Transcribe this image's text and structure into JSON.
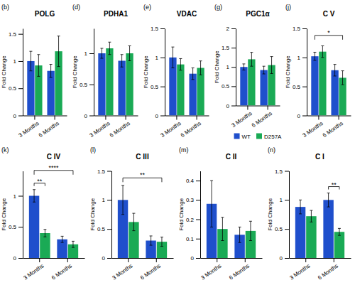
{
  "chart_data": [
    {
      "type": "bar",
      "title": "POLG",
      "ylabel": "Fold Change",
      "categories": [
        "3 Months",
        "6 Months"
      ],
      "series": [
        {
          "color": "#1f4fcc",
          "values": [
            1.0,
            0.82
          ],
          "errors": [
            0.18,
            0.12
          ]
        },
        {
          "color": "#1aaa55",
          "values": [
            0.92,
            1.18
          ],
          "errors": [
            0.2,
            0.28
          ]
        }
      ],
      "ylim": [
        0,
        1.6
      ],
      "yticks": [
        0,
        0.5,
        1,
        1.5
      ],
      "annotations": [
        {
          "text": "(b)"
        }
      ]
    },
    {
      "type": "bar",
      "title": "PDHA1",
      "ylabel": "Fold Change",
      "categories": [
        "3 Months",
        "6 Months"
      ],
      "series": [
        {
          "color": "#1f4fcc",
          "values": [
            1.0,
            0.88
          ],
          "errors": [
            0.08,
            0.1
          ]
        },
        {
          "color": "#1aaa55",
          "values": [
            1.08,
            1.0
          ],
          "errors": [
            0.1,
            0.12
          ]
        }
      ],
      "ylim": [
        0,
        1.4
      ],
      "yticks": [
        0,
        0.5,
        1
      ],
      "annotations": [
        {
          "text": "(d)"
        }
      ]
    },
    {
      "type": "bar",
      "title": "VDAC",
      "ylabel": "Fold Change",
      "categories": [
        "3 Months",
        "6 Months"
      ],
      "series": [
        {
          "color": "#1f4fcc",
          "values": [
            1.0,
            0.72
          ],
          "errors": [
            0.18,
            0.1
          ]
        },
        {
          "color": "#1aaa55",
          "values": [
            0.88,
            0.82
          ],
          "errors": [
            0.1,
            0.12
          ]
        }
      ],
      "ylim": [
        0,
        1.5
      ],
      "yticks": [
        0,
        0.5,
        1,
        1.5
      ],
      "annotations": [
        {
          "text": "(e)"
        }
      ]
    },
    {
      "type": "bar",
      "title": "PGC1α",
      "ylabel": "Fold Change",
      "categories": [
        "3 Months",
        "6 Months"
      ],
      "series": [
        {
          "name": "WT",
          "color": "#1f4fcc",
          "values": [
            1.0,
            0.92
          ],
          "errors": [
            0.08,
            0.1
          ]
        },
        {
          "name": "D257A",
          "color": "#1aaa55",
          "values": [
            1.2,
            1.05
          ],
          "errors": [
            0.18,
            0.22
          ]
        }
      ],
      "ylim": [
        0,
        2.0
      ],
      "yticks": [
        0,
        0.5,
        1,
        1.5,
        2
      ],
      "legend": "bottom",
      "annotations": [
        {
          "text": "(g)"
        }
      ]
    },
    {
      "type": "bar",
      "title": "C V",
      "ylabel": "Fold Change",
      "categories": [
        "3 Months",
        "6 Months"
      ],
      "series": [
        {
          "color": "#1f4fcc",
          "values": [
            1.02,
            0.78
          ],
          "errors": [
            0.07,
            0.1
          ]
        },
        {
          "color": "#1aaa55",
          "values": [
            1.1,
            0.65
          ],
          "errors": [
            0.1,
            0.12
          ]
        }
      ],
      "ylim": [
        0,
        1.5
      ],
      "yticks": [
        0,
        0.5,
        1,
        1.5
      ],
      "annotations": [
        {
          "text": "(j)"
        },
        {
          "text": "*",
          "categories": [
            "3 Months",
            "6 Months"
          ]
        }
      ]
    },
    {
      "type": "bar",
      "title": "C IV",
      "ylabel": "Fold Change",
      "categories": [
        "3 Months",
        "6 Months"
      ],
      "series": [
        {
          "color": "#1f4fcc",
          "values": [
            1.0,
            0.3
          ],
          "errors": [
            0.1,
            0.05
          ]
        },
        {
          "color": "#1aaa55",
          "values": [
            0.4,
            0.22
          ],
          "errors": [
            0.06,
            0.05
          ]
        }
      ],
      "ylim": [
        0,
        1.4
      ],
      "yticks": [
        0,
        0.5,
        1
      ],
      "annotations": [
        {
          "text": "(k)"
        },
        {
          "text": "**",
          "categories": [
            "3 Months"
          ]
        },
        {
          "text": "****",
          "categories": [
            "3 Months",
            "6 Months"
          ]
        }
      ]
    },
    {
      "type": "bar",
      "title": "C III",
      "ylabel": "Fold Change",
      "categories": [
        "3 Months",
        "6 Months"
      ],
      "series": [
        {
          "color": "#1f4fcc",
          "values": [
            1.0,
            0.3
          ],
          "errors": [
            0.25,
            0.08
          ]
        },
        {
          "color": "#1aaa55",
          "values": [
            0.62,
            0.28
          ],
          "errors": [
            0.15,
            0.08
          ]
        }
      ],
      "ylim": [
        0,
        1.5
      ],
      "yticks": [
        0,
        0.5,
        1,
        1.5
      ],
      "annotations": [
        {
          "text": "(l)"
        },
        {
          "text": "**",
          "categories": [
            "3 Months",
            "6 Months"
          ]
        }
      ]
    },
    {
      "type": "bar",
      "title": "C II",
      "ylabel": "Fold Change",
      "categories": [
        "3 Months",
        "6 Months"
      ],
      "series": [
        {
          "color": "#1f4fcc",
          "values": [
            0.28,
            0.12
          ],
          "errors": [
            0.12,
            0.04
          ]
        },
        {
          "color": "#1aaa55",
          "values": [
            0.15,
            0.14
          ],
          "errors": [
            0.06,
            0.05
          ]
        }
      ],
      "ylim": [
        0,
        0.45
      ],
      "yticks": [
        0,
        0.1,
        0.2,
        0.3,
        0.4
      ],
      "annotations": [
        {
          "text": "(m)"
        }
      ]
    },
    {
      "type": "bar",
      "title": "C I",
      "ylabel": "Fold Change",
      "categories": [
        "3 Months",
        "6 Months"
      ],
      "series": [
        {
          "color": "#1f4fcc",
          "values": [
            0.88,
            1.0
          ],
          "errors": [
            0.12,
            0.12
          ]
        },
        {
          "color": "#1aaa55",
          "values": [
            0.72,
            0.45
          ],
          "errors": [
            0.1,
            0.06
          ]
        }
      ],
      "ylim": [
        0,
        1.5
      ],
      "yticks": [
        0,
        0.5,
        1,
        1.5
      ],
      "annotations": [
        {
          "text": "(n)"
        },
        {
          "text": "**",
          "categories": [
            "6 Months"
          ]
        }
      ]
    }
  ]
}
